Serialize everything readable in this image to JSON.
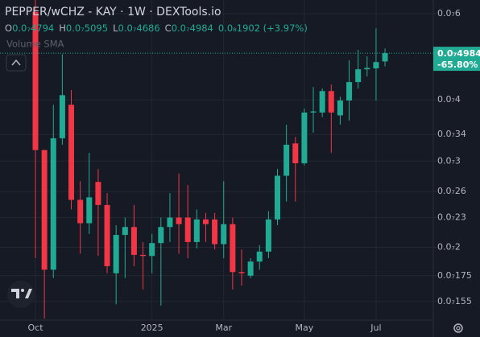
{
  "chart_data": {
    "type": "candlestick",
    "title": "PEPPER/wCHZ - KAY · 1W · DEXTools.io",
    "legend_items": [
      {
        "label": "O",
        "value": "0.0₇4794"
      },
      {
        "label": "H",
        "value": "0.0₇5095"
      },
      {
        "label": "L",
        "value": "0.0₇4686"
      },
      {
        "label": "C",
        "value": "0.0₇4984"
      }
    ],
    "change_label": "0.0₈1902 (+3.97%)",
    "indicator": "Volume SMA",
    "price_tag": [
      "0.0₇4984",
      "-65.80%"
    ],
    "up_color": "#22ab94",
    "down_color": "#f23645",
    "log_scale": true,
    "grid": true,
    "categories": [
      "Oct",
      null,
      null,
      null,
      null,
      null,
      null,
      null,
      null,
      null,
      null,
      null,
      null,
      "2025",
      null,
      null,
      null,
      null,
      null,
      null,
      null,
      "Mar",
      null,
      null,
      null,
      null,
      null,
      null,
      null,
      null,
      "May",
      null,
      null,
      null,
      null,
      null,
      null,
      null,
      "Jul",
      null
    ],
    "open": [
      6.05e-08,
      3.16e-08,
      1.8e-08,
      3.34e-08,
      3.91e-08,
      2.5e-08,
      2.24e-08,
      2.72e-08,
      2.44e-08,
      1.77e-08,
      2.12e-08,
      2.2e-08,
      1.93e-08,
      1.92e-08,
      2.04e-08,
      2.2e-08,
      2.3e-08,
      2.3e-08,
      2.05e-08,
      2.28e-08,
      2.28e-08,
      2.03e-08,
      2.23e-08,
      1.78e-08,
      1.75e-08,
      1.87e-08,
      1.96e-08,
      2.28e-08,
      2.8e-08,
      3.26e-08,
      2.97e-08,
      3.77e-08,
      3.77e-08,
      4.17e-08,
      3.72e-08,
      3.99e-08,
      4.35e-08,
      4.62e-08,
      4.64e-08,
      4.794e-08
    ],
    "high": [
      6.4e-08,
      3.16e-08,
      3.91e-08,
      4.96e-08,
      4.19e-08,
      2.73e-08,
      3.12e-08,
      2.89e-08,
      2.58e-08,
      2.22e-08,
      2.3e-08,
      2.44e-08,
      2.05e-08,
      2.13e-08,
      2.3e-08,
      2.58e-08,
      2.83e-08,
      2.68e-08,
      2.39e-08,
      2.35e-08,
      2.35e-08,
      2.73e-08,
      2.3e-08,
      1.98e-08,
      1.9e-08,
      2.02e-08,
      2.37e-08,
      2.89e-08,
      3.56e-08,
      3.36e-08,
      3.84e-08,
      4.25e-08,
      4.22e-08,
      4.3e-08,
      4.06e-08,
      4.82e-08,
      5.06e-08,
      4.91e-08,
      5.6e-08,
      5.095e-08
    ],
    "low": [
      1.9e-08,
      1.43e-08,
      1.73e-08,
      3.24e-08,
      2.39e-08,
      1.94e-08,
      2.13e-08,
      1.92e-08,
      1.77e-08,
      1.53e-08,
      1.73e-08,
      1.83e-08,
      1.64e-08,
      1.77e-08,
      1.52e-08,
      2.05e-08,
      1.94e-08,
      1.9e-08,
      1.99e-08,
      2.05e-08,
      1.98e-08,
      1.9e-08,
      1.64e-08,
      1.67e-08,
      1.73e-08,
      1.8e-08,
      1.9e-08,
      2.22e-08,
      2.48e-08,
      2.48e-08,
      2.94e-08,
      3.43e-08,
      3.69e-08,
      3.12e-08,
      3.56e-08,
      3.63e-08,
      4.22e-08,
      4.47e-08,
      3.99e-08,
      4.686e-08
    ],
    "close": [
      3.16e-08,
      1.8e-08,
      3.34e-08,
      4.09e-08,
      2.5e-08,
      2.24e-08,
      2.53e-08,
      2.44e-08,
      1.83e-08,
      2.12e-08,
      2.2e-08,
      1.93e-08,
      1.92e-08,
      2.04e-08,
      2.2e-08,
      2.3e-08,
      2.23e-08,
      2.05e-08,
      2.28e-08,
      2.23e-08,
      2.03e-08,
      2.23e-08,
      1.78e-08,
      1.77e-08,
      1.87e-08,
      1.96e-08,
      2.28e-08,
      2.8e-08,
      3.24e-08,
      2.97e-08,
      3.77e-08,
      3.79e-08,
      4.17e-08,
      3.77e-08,
      3.99e-08,
      4.35e-08,
      4.62e-08,
      4.65e-08,
      4.78e-08,
      4.984e-08
    ],
    "ylim": [
      1.42e-08,
      6.4e-08
    ],
    "yticks": [
      {
        "value": 6e-08,
        "label": "0.0₇6"
      },
      {
        "value": 4e-08,
        "label": "0.0₇4"
      },
      {
        "value": 3.4e-08,
        "label": "0.0₇34"
      },
      {
        "value": 3e-08,
        "label": "0.0₇3"
      },
      {
        "value": 2.6e-08,
        "label": "0.0₇26"
      },
      {
        "value": 2.3e-08,
        "label": "0.0₇23"
      },
      {
        "value": 2e-08,
        "label": "0.0₇2"
      },
      {
        "value": 1.75e-08,
        "label": "0.0₇175"
      },
      {
        "value": 1.55e-08,
        "label": "0.0₇155"
      }
    ]
  }
}
